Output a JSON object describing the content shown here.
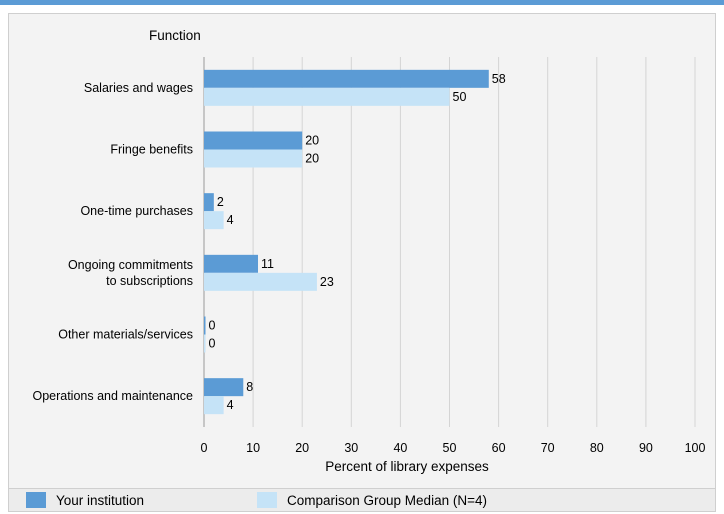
{
  "chart_data": {
    "type": "bar",
    "orientation": "horizontal",
    "ytitle": "Function",
    "xlabel": "Percent of library expenses",
    "xlim": [
      0,
      100
    ],
    "xticks": [
      0,
      10,
      20,
      30,
      40,
      50,
      60,
      70,
      80,
      90,
      100
    ],
    "grid": true,
    "legend_position": "bottom",
    "categories": [
      "Salaries and wages",
      "Fringe benefits",
      "One-time purchases",
      "Ongoing commitments\nto subscriptions",
      "Other materials/services",
      "Operations and maintenance"
    ],
    "series": [
      {
        "name": "Your institution",
        "color": "#5b9bd5",
        "values": [
          58,
          20,
          2,
          11,
          0,
          8
        ]
      },
      {
        "name": "Comparison Group Median (N=4)",
        "color": "#c5e3f7",
        "values": [
          50,
          20,
          4,
          23,
          0,
          4
        ]
      }
    ]
  }
}
